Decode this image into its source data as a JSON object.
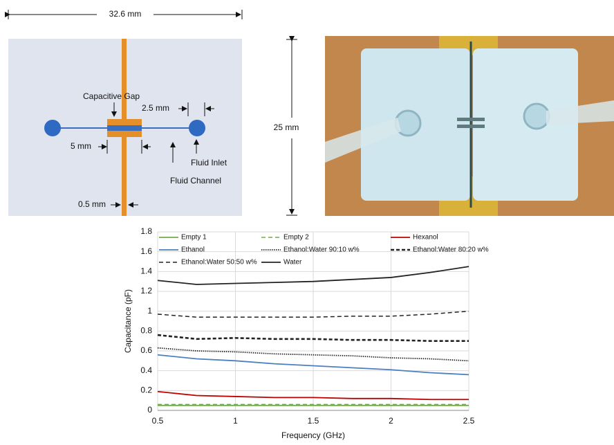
{
  "figure": {
    "width_label": "32.6 mm",
    "height_label": "25 mm",
    "gap_label": "Capacitive Gap",
    "inlet_spacing_label": "2.5 mm",
    "capacitor_width_label": "5 mm",
    "inlet_label": "Fluid Inlet",
    "channel_label": "Fluid Channel",
    "line_width_label": "0.5 mm"
  },
  "chart_data": {
    "type": "line",
    "x_label": "Frequency (GHz)",
    "y_label": "Capacitance (pF)",
    "x": [
      0.5,
      0.75,
      1,
      1.25,
      1.5,
      1.75,
      2,
      2.25,
      2.5
    ],
    "xlim": [
      0.5,
      2.5
    ],
    "xticks": [
      0.5,
      1,
      1.5,
      2,
      2.5
    ],
    "ylim": [
      0,
      1.8
    ],
    "yticks": [
      0,
      0.2,
      0.4,
      0.6,
      0.8,
      1,
      1.2,
      1.4,
      1.6,
      1.8
    ],
    "grid": true,
    "series": [
      {
        "name": "Empty 1",
        "color": "#70ad47",
        "style": "solid",
        "values": [
          0.05,
          0.05,
          0.05,
          0.05,
          0.05,
          0.05,
          0.05,
          0.05,
          0.05
        ]
      },
      {
        "name": "Empty 2",
        "color": "#70ad47",
        "style": "dashed",
        "values": [
          0.06,
          0.06,
          0.06,
          0.06,
          0.06,
          0.06,
          0.06,
          0.06,
          0.06
        ]
      },
      {
        "name": "Hexanol",
        "color": "#c00000",
        "style": "solid",
        "values": [
          0.19,
          0.15,
          0.14,
          0.13,
          0.13,
          0.12,
          0.12,
          0.11,
          0.11
        ]
      },
      {
        "name": "Ethanol",
        "color": "#4a7fc1",
        "style": "solid",
        "values": [
          0.56,
          0.52,
          0.5,
          0.47,
          0.45,
          0.43,
          0.41,
          0.38,
          0.36
        ]
      },
      {
        "name": "Ethanol:Water 90:10 w%",
        "color": "#222222",
        "style": "dotted",
        "values": [
          0.63,
          0.6,
          0.59,
          0.57,
          0.56,
          0.55,
          0.53,
          0.52,
          0.5
        ]
      },
      {
        "name": "Ethanol:Water 80:20 w%",
        "color": "#222222",
        "style": "heavy-dashed",
        "values": [
          0.76,
          0.72,
          0.73,
          0.72,
          0.72,
          0.71,
          0.71,
          0.7,
          0.7
        ]
      },
      {
        "name": "Ethanol:Water 50:50 w%",
        "color": "#222222",
        "style": "dashed",
        "values": [
          0.97,
          0.94,
          0.94,
          0.94,
          0.94,
          0.95,
          0.95,
          0.97,
          1.0
        ]
      },
      {
        "name": "Water",
        "color": "#222222",
        "style": "solid",
        "values": [
          1.31,
          1.27,
          1.28,
          1.29,
          1.3,
          1.32,
          1.34,
          1.39,
          1.45
        ]
      }
    ]
  }
}
